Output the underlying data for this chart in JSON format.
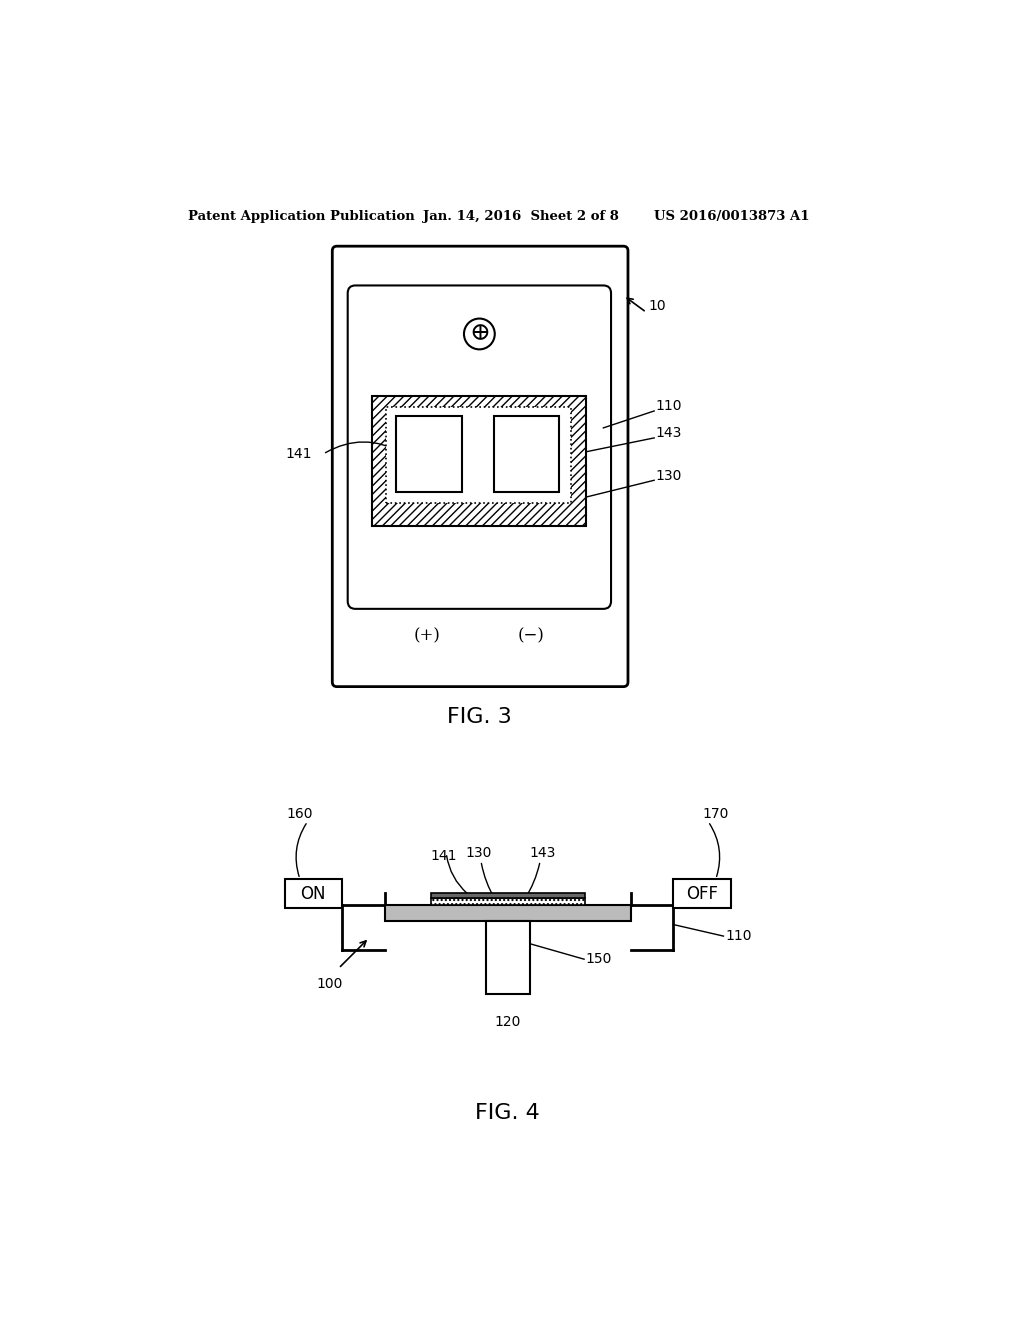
{
  "bg_color": "#ffffff",
  "header_left": "Patent Application Publication",
  "header_mid": "Jan. 14, 2016  Sheet 2 of 8",
  "header_right": "US 2016/0013873 A1",
  "fig3_label": "FIG. 3",
  "fig4_label": "FIG. 4"
}
